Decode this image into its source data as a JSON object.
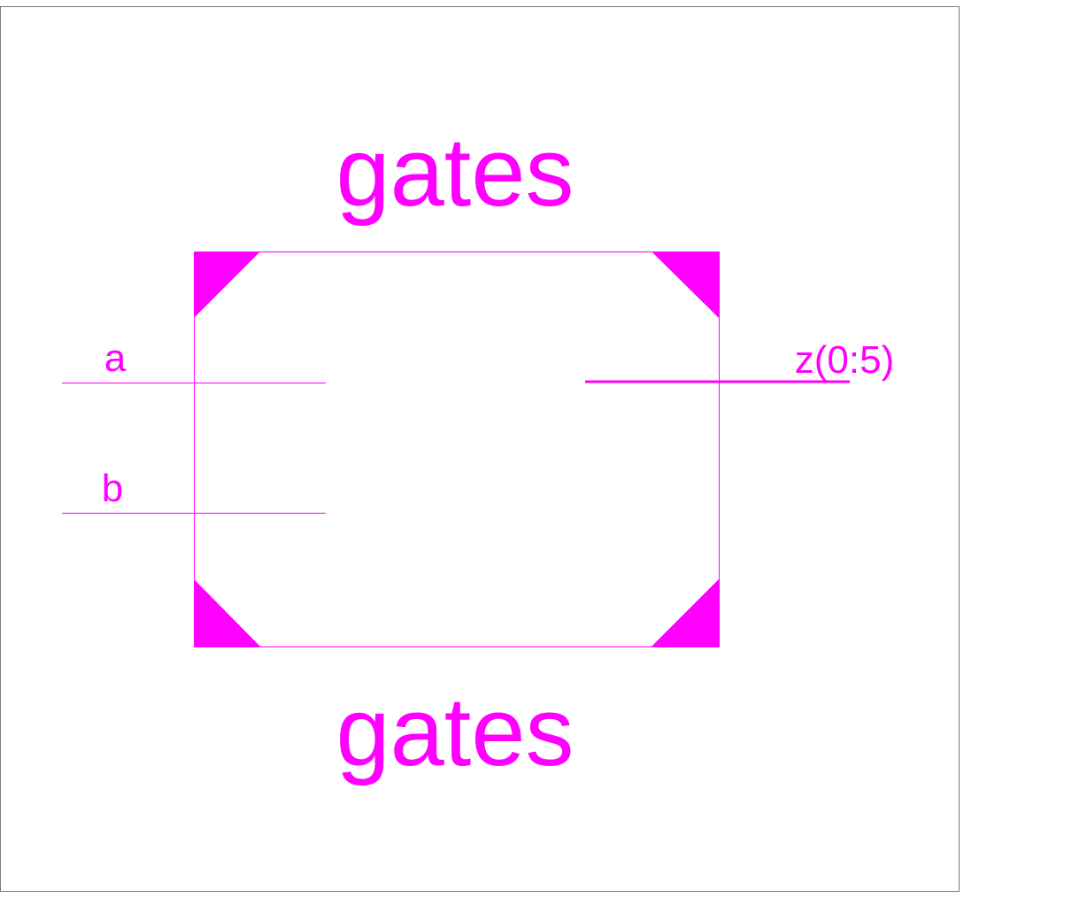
{
  "symbol": {
    "top_label": "gates",
    "bottom_label": "gates",
    "color": "#ff00ff",
    "frame_color": "#7a7a7a"
  },
  "pins": {
    "inputs": [
      {
        "name": "a"
      },
      {
        "name": "b"
      }
    ],
    "outputs": [
      {
        "name": "z(0:5)",
        "bus": true
      }
    ]
  }
}
